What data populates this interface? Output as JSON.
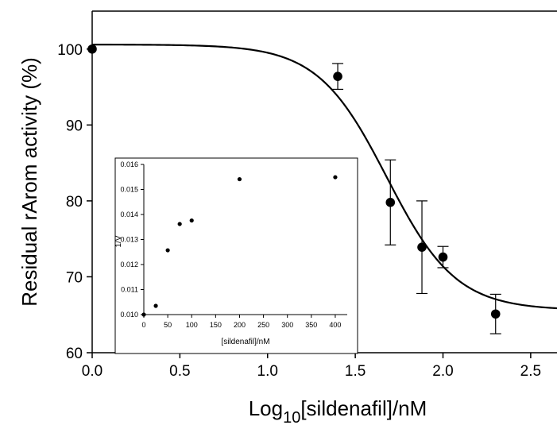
{
  "chart_data": [
    {
      "type": "scatter",
      "xlabel_main": "Log",
      "xlabel_sub": "10",
      "xlabel_rest": "[sildenafil]/nM",
      "ylabel": "Residual rArom activity (%)",
      "xlim": [
        0,
        2.65
      ],
      "ylim": [
        60,
        105
      ],
      "xticks": [
        "0.0",
        "0.5",
        "1.0",
        "1.5",
        "2.0",
        "2.5"
      ],
      "xtick_values": [
        0,
        0.5,
        1.0,
        1.5,
        2.0,
        2.5
      ],
      "yticks": [
        "60",
        "70",
        "80",
        "90",
        "100"
      ],
      "ytick_values": [
        60,
        70,
        80,
        90,
        100
      ],
      "points": [
        {
          "x": 0.0,
          "y": 100.0,
          "err": 0
        },
        {
          "x": 1.4,
          "y": 96.4,
          "err": 1.7
        },
        {
          "x": 1.7,
          "y": 79.8,
          "err": 5.6
        },
        {
          "x": 1.88,
          "y": 73.9,
          "err": 6.1
        },
        {
          "x": 2.0,
          "y": 72.6,
          "err": 1.4
        },
        {
          "x": 2.3,
          "y": 65.1,
          "err": 2.6
        }
      ],
      "fit_curve": {
        "top": 100.6,
        "bottom": 65.6,
        "log_ec50": 1.68,
        "hill": 2.2
      }
    },
    {
      "type": "scatter",
      "xlabel": "[sildenafil]/nM",
      "ylabel": "1/V",
      "xlim": [
        0,
        425
      ],
      "ylim": [
        0.01,
        0.016
      ],
      "xticks": [
        "0",
        "50",
        "100",
        "150",
        "200",
        "250",
        "300",
        "350",
        "400"
      ],
      "xtick_values": [
        0,
        50,
        100,
        150,
        200,
        250,
        300,
        350,
        400
      ],
      "yticks": [
        "0.010",
        "0.011",
        "0.012",
        "0.013",
        "0.014",
        "0.015",
        "0.016"
      ],
      "ytick_values": [
        0.01,
        0.011,
        0.012,
        0.013,
        0.014,
        0.015,
        0.016
      ],
      "points": [
        {
          "x": 0,
          "y": 0.01
        },
        {
          "x": 25,
          "y": 0.01035
        },
        {
          "x": 50,
          "y": 0.01257
        },
        {
          "x": 75,
          "y": 0.01362
        },
        {
          "x": 100,
          "y": 0.01376
        },
        {
          "x": 200,
          "y": 0.01541
        },
        {
          "x": 400,
          "y": 0.01549
        }
      ]
    }
  ]
}
